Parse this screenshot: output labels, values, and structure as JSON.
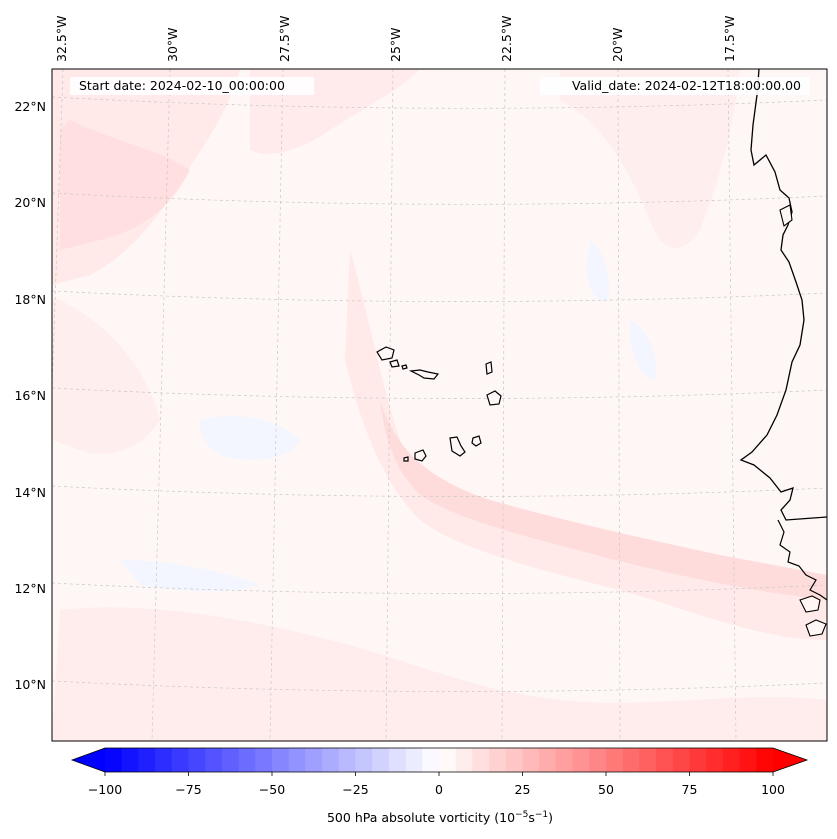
{
  "header": {
    "start_date": "Start date: 2024-02-10_00:00:00",
    "valid_date": "Valid_date: 2024-02-12T18:00:00.00"
  },
  "map": {
    "projection": "lambert-conformal",
    "longitude_labels": [
      "32.5°W",
      "30°W",
      "27.5°W",
      "25°W",
      "22.5°W",
      "20°W",
      "17.5°W"
    ],
    "latitude_labels": [
      "22°N",
      "20°N",
      "18°N",
      "16°N",
      "14°N",
      "12°N",
      "10°N"
    ],
    "features": [
      "coastline-west-africa",
      "cape-verde-islands"
    ]
  },
  "colorbar": {
    "label_prefix": "500 hPa absolute vorticity (10",
    "label_exp1": "−5",
    "label_mid": "s",
    "label_exp2": "−1",
    "label_suffix": ")",
    "tick_labels": [
      "−100",
      "−75",
      "−50",
      "−25",
      "0",
      "25",
      "50",
      "75",
      "100"
    ],
    "min": -100,
    "max": 100,
    "step": 5,
    "low_color": "#0000ff",
    "mid_color": "#ffffff",
    "high_color": "#ff0000"
  },
  "field": {
    "background_color": "#fff6f6",
    "weak_positive_color": "#ffe9e9",
    "moderate_positive_color": "#ffdcdc",
    "weak_negative_color": "#f3f6ff"
  }
}
